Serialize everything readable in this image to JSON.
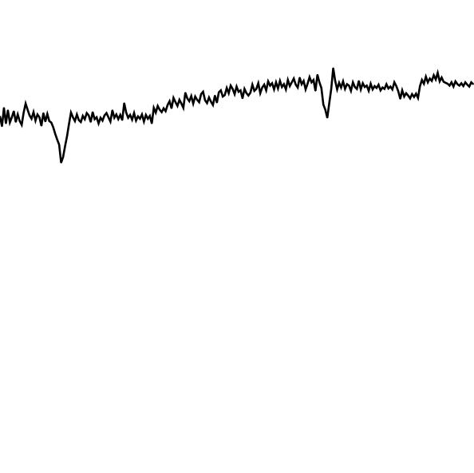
{
  "chart_data": {
    "type": "line",
    "title": "",
    "xlabel": "",
    "ylabel": "",
    "grid": false,
    "legend": "none",
    "axes_visible": false,
    "line_color": "#000000",
    "background_color": "#ffffff",
    "ylim": [
      0,
      1
    ],
    "series": [
      {
        "values": [
          0.754,
          0.733,
          0.772,
          0.739,
          0.767,
          0.741,
          0.752,
          0.765,
          0.742,
          0.758,
          0.744,
          0.736,
          0.762,
          0.781,
          0.768,
          0.756,
          0.749,
          0.763,
          0.745,
          0.758,
          0.752,
          0.734,
          0.761,
          0.743,
          0.759,
          0.744,
          0.741,
          0.731,
          0.717,
          0.705,
          0.694,
          0.656,
          0.668,
          0.691,
          0.712,
          0.738,
          0.762,
          0.752,
          0.744,
          0.758,
          0.746,
          0.742,
          0.755,
          0.748,
          0.761,
          0.756,
          0.742,
          0.763,
          0.748,
          0.752,
          0.739,
          0.751,
          0.745,
          0.756,
          0.761,
          0.752,
          0.743,
          0.767,
          0.751,
          0.758,
          0.748,
          0.757,
          0.746,
          0.782,
          0.762,
          0.751,
          0.757,
          0.747,
          0.761,
          0.745,
          0.754,
          0.749,
          0.758,
          0.743,
          0.757,
          0.749,
          0.755,
          0.739,
          0.772,
          0.762,
          0.776,
          0.768,
          0.763,
          0.771,
          0.765,
          0.778,
          0.786,
          0.771,
          0.793,
          0.784,
          0.776,
          0.789,
          0.781,
          0.772,
          0.804,
          0.792,
          0.786,
          0.797,
          0.781,
          0.796,
          0.789,
          0.784,
          0.801,
          0.806,
          0.788,
          0.782,
          0.794,
          0.785,
          0.778,
          0.798,
          0.783,
          0.805,
          0.809,
          0.796,
          0.799,
          0.814,
          0.803,
          0.819,
          0.812,
          0.801,
          0.817,
          0.806,
          0.809,
          0.792,
          0.812,
          0.803,
          0.798,
          0.804,
          0.821,
          0.808,
          0.812,
          0.824,
          0.803,
          0.815,
          0.821,
          0.809,
          0.828,
          0.819,
          0.824,
          0.811,
          0.826,
          0.813,
          0.829,
          0.816,
          0.822,
          0.811,
          0.831,
          0.818,
          0.826,
          0.834,
          0.821,
          0.815,
          0.836,
          0.822,
          0.829,
          0.811,
          0.823,
          0.837,
          0.826,
          0.831,
          0.808,
          0.842,
          0.826,
          0.814,
          0.779,
          0.768,
          0.751,
          0.782,
          0.812,
          0.856,
          0.829,
          0.811,
          0.825,
          0.815,
          0.828,
          0.812,
          0.822,
          0.819,
          0.808,
          0.826,
          0.816,
          0.812,
          0.829,
          0.811,
          0.824,
          0.816,
          0.819,
          0.808,
          0.823,
          0.811,
          0.818,
          0.814,
          0.821,
          0.809,
          0.815,
          0.812,
          0.822,
          0.813,
          0.817,
          0.811,
          0.826,
          0.818,
          0.807,
          0.791,
          0.809,
          0.796,
          0.803,
          0.798,
          0.792,
          0.801,
          0.795,
          0.802,
          0.793,
          0.818,
          0.831,
          0.823,
          0.838,
          0.826,
          0.834,
          0.829,
          0.841,
          0.832,
          0.846,
          0.828,
          0.836,
          0.827,
          0.825,
          0.823,
          0.819,
          0.826,
          0.817,
          0.828,
          0.822,
          0.819,
          0.824,
          0.818,
          0.826,
          0.821,
          0.817,
          0.826,
          0.822
        ]
      }
    ]
  }
}
